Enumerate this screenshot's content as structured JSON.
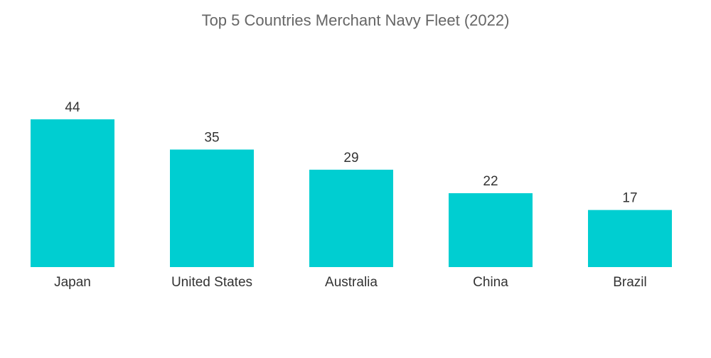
{
  "chart_data": {
    "type": "bar",
    "title": "Top 5 Countries Merchant Navy Fleet (2022)",
    "categories": [
      "Japan",
      "United States",
      "Australia",
      "China",
      "Brazil"
    ],
    "values": [
      44,
      35,
      29,
      22,
      17
    ],
    "xlabel": "",
    "ylabel": "",
    "ylim": [
      0,
      44
    ],
    "grid": false,
    "legend": "none",
    "bar_color": "#00CED1"
  }
}
